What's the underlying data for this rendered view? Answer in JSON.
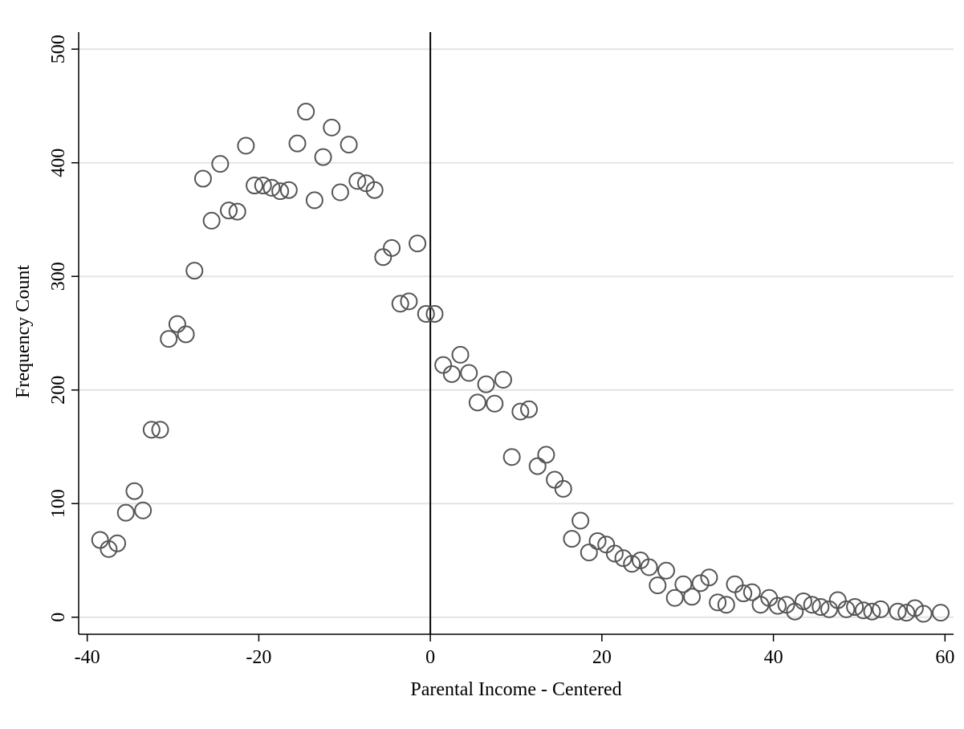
{
  "chart_data": {
    "type": "scatter",
    "xlabel": "Parental Income - Centered",
    "ylabel": "Frequency Count",
    "xlim": [
      -41,
      61
    ],
    "ylim": [
      -15,
      515
    ],
    "xticks": [
      -40,
      -20,
      0,
      20,
      40,
      60
    ],
    "yticks": [
      0,
      100,
      200,
      300,
      400,
      500
    ],
    "grid": "horizontal",
    "cutoff_line_x": 0,
    "marker": "hollow-circle",
    "colors": {
      "marker": "#555555",
      "grid": "#e4e4e4",
      "axis": "#000000"
    },
    "x": [
      -38.5,
      -37.5,
      -36.5,
      -35.5,
      -34.5,
      -33.5,
      -32.5,
      -31.5,
      -30.5,
      -29.5,
      -28.5,
      -27.5,
      -26.5,
      -25.5,
      -24.5,
      -23.5,
      -22.5,
      -21.5,
      -20.5,
      -19.5,
      -18.5,
      -17.5,
      -16.5,
      -15.5,
      -14.5,
      -13.5,
      -12.5,
      -11.5,
      -10.5,
      -9.5,
      -8.5,
      -7.5,
      -6.5,
      -5.5,
      -4.5,
      -3.5,
      -2.5,
      -1.5,
      -0.5,
      0.5,
      1.5,
      2.5,
      3.5,
      4.5,
      5.5,
      6.5,
      7.5,
      8.5,
      9.5,
      10.5,
      11.5,
      12.5,
      13.5,
      14.5,
      15.5,
      16.5,
      17.5,
      18.5,
      19.5,
      20.5,
      21.5,
      22.5,
      23.5,
      24.5,
      25.5,
      26.5,
      27.5,
      28.5,
      29.5,
      30.5,
      31.5,
      32.5,
      33.5,
      34.5,
      35.5,
      36.5,
      37.5,
      38.5,
      39.5,
      40.5,
      41.5,
      42.5,
      43.5,
      44.5,
      45.5,
      46.5,
      47.5,
      48.5,
      49.5,
      50.5,
      51.5,
      52.5,
      54.5,
      55.5,
      56.5,
      57.5,
      59.5
    ],
    "y": [
      68,
      60,
      65,
      92,
      111,
      94,
      165,
      165,
      245,
      258,
      249,
      305,
      386,
      349,
      399,
      358,
      357,
      415,
      380,
      380,
      378,
      375,
      376,
      417,
      445,
      367,
      405,
      431,
      374,
      416,
      384,
      382,
      376,
      317,
      325,
      276,
      278,
      329,
      267,
      267,
      222,
      214,
      231,
      215,
      189,
      205,
      188,
      209,
      141,
      181,
      183,
      133,
      143,
      121,
      113,
      69,
      85,
      57,
      67,
      64,
      56,
      52,
      47,
      50,
      44,
      28,
      41,
      17,
      29,
      18,
      30,
      35,
      13,
      11,
      29,
      21,
      22,
      11,
      17,
      10,
      11,
      5,
      14,
      11,
      9,
      7,
      15,
      7,
      9,
      6,
      5,
      7,
      5,
      4,
      8,
      3,
      4
    ]
  }
}
